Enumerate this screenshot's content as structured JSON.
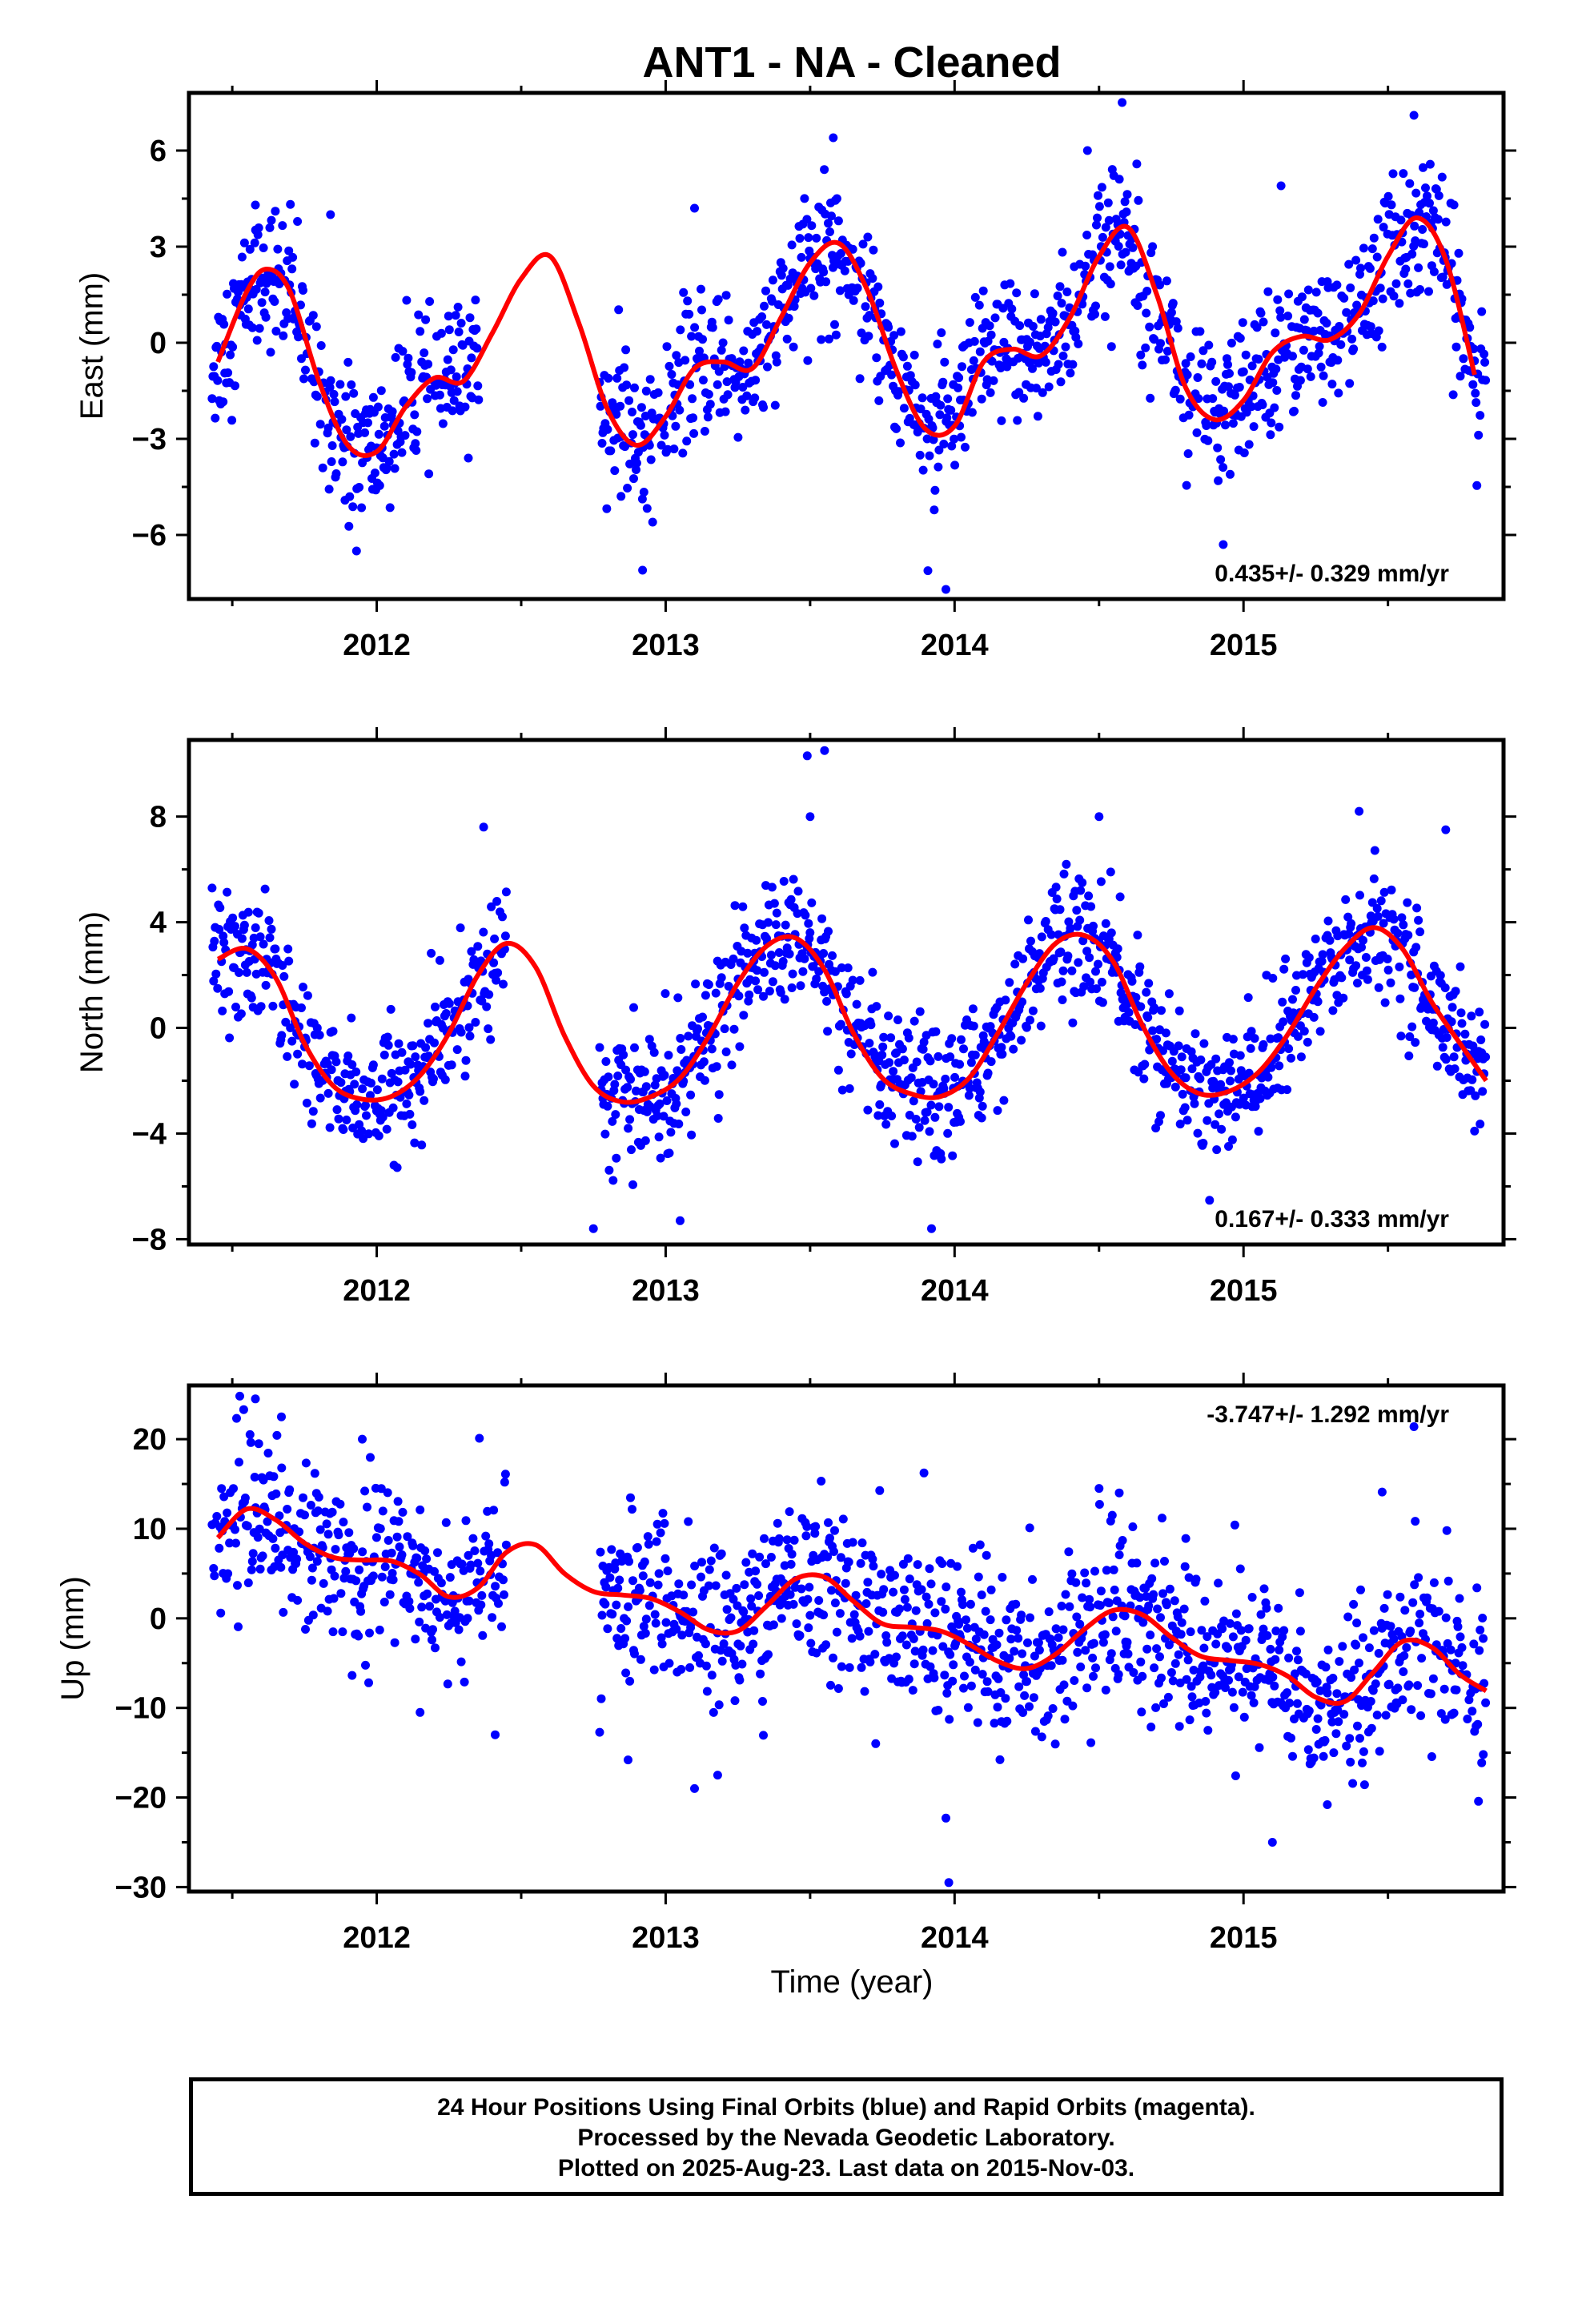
{
  "title": "ANT1  - NA - Cleaned",
  "xlabel": "Time (year)",
  "footer": [
    "24 Hour Positions Using Final Orbits (blue) and Rapid Orbits (magenta).",
    "Processed by the Nevada Geodetic Laboratory.",
    "Plotted on 2025-Aug-23. Last data on 2015-Nov-03."
  ],
  "colors": {
    "points": "#0000ff",
    "model": "#ff0000",
    "frame": "#000000"
  },
  "chart_data": [
    {
      "type": "scatter",
      "name_label": "East (mm)",
      "ylabel": "East (mm)",
      "xlim": [
        2011.35,
        2015.9
      ],
      "ylim": [
        -8,
        7.8
      ],
      "yticks": [
        -6,
        -3,
        0,
        3,
        6
      ],
      "xticks": [
        2012,
        2013,
        2014,
        2015
      ],
      "rate": "0.435+/- 0.329 mm/yr",
      "rate_position": "bottom-right",
      "model_series": {
        "name": "",
        "x": [
          2011.45,
          2011.55,
          2011.62,
          2011.7,
          2011.8,
          2011.9,
          2012.0,
          2012.1,
          2012.2,
          2012.3,
          2012.4,
          2012.5,
          2012.6,
          2012.7,
          2012.8,
          2012.9,
          2013.0,
          2013.1,
          2013.2,
          2013.3,
          2013.4,
          2013.5,
          2013.6,
          2013.7,
          2013.8,
          2013.9,
          2014.0,
          2014.1,
          2014.2,
          2014.3,
          2014.4,
          2014.5,
          2014.6,
          2014.7,
          2014.8,
          2014.9,
          2015.0,
          2015.1,
          2015.2,
          2015.3,
          2015.4,
          2015.5,
          2015.6,
          2015.7,
          2015.8
        ],
        "y": [
          -0.6,
          1.6,
          2.3,
          1.6,
          -1.2,
          -3.2,
          -3.4,
          -2.0,
          -1.1,
          -1.2,
          0.3,
          2.0,
          2.7,
          0.6,
          -2.1,
          -3.2,
          -2.3,
          -0.8,
          -0.6,
          -0.8,
          0.8,
          2.5,
          3.1,
          1.6,
          -0.9,
          -2.7,
          -2.6,
          -0.6,
          -0.2,
          -0.4,
          0.8,
          2.7,
          3.6,
          1.5,
          -1.4,
          -2.4,
          -1.8,
          -0.3,
          0.2,
          0.1,
          0.9,
          2.7,
          3.9,
          2.6,
          -1.0
        ]
      },
      "points": {
        "model": "seasonal",
        "x_start": 2011.43,
        "x_end": 2015.84,
        "gaps": [
          [
            2012.36,
            2012.77
          ]
        ],
        "spread": 1.1,
        "outliers": [
          [
            2011.58,
            4.3
          ],
          [
            2011.84,
            4.0
          ],
          [
            2011.93,
            -6.5
          ],
          [
            2012.92,
            -7.1
          ],
          [
            2013.1,
            4.2
          ],
          [
            2013.58,
            6.4
          ],
          [
            2013.97,
            -7.7
          ],
          [
            2014.46,
            6.0
          ],
          [
            2014.58,
            7.5
          ],
          [
            2014.93,
            -6.3
          ],
          [
            2015.13,
            4.9
          ],
          [
            2015.59,
            7.1
          ]
        ]
      }
    },
    {
      "type": "scatter",
      "ylabel": "North (mm)",
      "xlim": [
        2011.35,
        2015.9
      ],
      "ylim": [
        -8.2,
        10.9
      ],
      "yticks": [
        -8,
        -4,
        0,
        4,
        8
      ],
      "xticks": [
        2012,
        2013,
        2014,
        2015
      ],
      "rate": "0.167+/- 0.333 mm/yr",
      "rate_position": "bottom-right",
      "model_series": {
        "name": "",
        "x": [
          2011.45,
          2011.55,
          2011.65,
          2011.75,
          2011.85,
          2011.95,
          2012.05,
          2012.15,
          2012.25,
          2012.35,
          2012.45,
          2012.55,
          2012.65,
          2012.75,
          2012.85,
          2012.95,
          2013.05,
          2013.15,
          2013.25,
          2013.35,
          2013.45,
          2013.55,
          2013.65,
          2013.75,
          2013.85,
          2013.95,
          2014.05,
          2014.15,
          2014.25,
          2014.35,
          2014.45,
          2014.55,
          2014.65,
          2014.75,
          2014.85,
          2014.95,
          2015.05,
          2015.15,
          2015.25,
          2015.35,
          2015.45,
          2015.55,
          2015.65,
          2015.75,
          2015.84
        ],
        "y": [
          2.6,
          3.0,
          1.9,
          -0.6,
          -2.2,
          -2.7,
          -2.6,
          -1.8,
          -0.2,
          2.0,
          3.2,
          2.3,
          -0.3,
          -2.2,
          -2.8,
          -2.6,
          -1.9,
          -0.3,
          1.7,
          3.1,
          3.4,
          2.2,
          -0.2,
          -1.9,
          -2.5,
          -2.6,
          -1.9,
          -0.2,
          1.7,
          3.2,
          3.5,
          2.5,
          0.1,
          -1.7,
          -2.5,
          -2.4,
          -1.7,
          -0.3,
          1.5,
          3.0,
          3.8,
          3.0,
          1.0,
          -0.6,
          -2.0
        ]
      },
      "points": {
        "model": "seasonal",
        "x_start": 2011.43,
        "x_end": 2015.84,
        "gaps": [
          [
            2012.45,
            2012.77
          ]
        ],
        "spread": 1.2,
        "outliers": [
          [
            2012.37,
            7.6
          ],
          [
            2012.75,
            -7.6
          ],
          [
            2013.05,
            -7.3
          ],
          [
            2013.49,
            10.3
          ],
          [
            2013.5,
            8.0
          ],
          [
            2013.55,
            10.5
          ],
          [
            2013.92,
            -7.6
          ],
          [
            2014.5,
            8.0
          ],
          [
            2015.4,
            8.2
          ],
          [
            2015.7,
            7.5
          ]
        ]
      }
    },
    {
      "type": "scatter",
      "ylabel": "Up (mm)",
      "xlim": [
        2011.35,
        2015.9
      ],
      "ylim": [
        -30.5,
        26
      ],
      "yticks": [
        -30,
        -20,
        -10,
        0,
        10,
        20
      ],
      "xticks": [
        2012,
        2013,
        2014,
        2015
      ],
      "rate": "-3.747+/- 1.292 mm/yr",
      "rate_position": "top-right",
      "model_series": {
        "name": "",
        "x": [
          2011.45,
          2011.55,
          2011.65,
          2011.75,
          2011.85,
          2011.95,
          2012.05,
          2012.15,
          2012.25,
          2012.35,
          2012.45,
          2012.55,
          2012.65,
          2012.75,
          2012.85,
          2012.95,
          2013.05,
          2013.15,
          2013.25,
          2013.35,
          2013.45,
          2013.55,
          2013.65,
          2013.75,
          2013.85,
          2013.95,
          2014.05,
          2014.15,
          2014.25,
          2014.35,
          2014.45,
          2014.55,
          2014.65,
          2014.75,
          2014.85,
          2014.95,
          2015.05,
          2015.15,
          2015.25,
          2015.35,
          2015.45,
          2015.55,
          2015.65,
          2015.75,
          2015.84
        ],
        "y": [
          9.0,
          12.2,
          11.0,
          8.4,
          6.8,
          6.5,
          6.4,
          4.9,
          2.4,
          3.4,
          7.4,
          8.2,
          5.0,
          3.0,
          2.6,
          2.2,
          0.7,
          -1.3,
          -1.4,
          1.4,
          4.4,
          4.6,
          1.9,
          -0.6,
          -1.0,
          -1.4,
          -2.9,
          -4.8,
          -5.6,
          -4.0,
          -1.2,
          0.9,
          0.4,
          -2.1,
          -4.2,
          -4.7,
          -5.1,
          -6.4,
          -8.8,
          -9.3,
          -6.0,
          -2.6,
          -3.2,
          -6.3,
          -8.1
        ]
      },
      "points": {
        "model": "seasonal",
        "x_start": 2011.43,
        "x_end": 2015.84,
        "gaps": [
          [
            2012.45,
            2012.77
          ]
        ],
        "spread": 4.6,
        "outliers": [
          [
            2011.58,
            24.5
          ],
          [
            2011.67,
            22.5
          ],
          [
            2011.95,
            20.0
          ],
          [
            2012.15,
            -10.5
          ],
          [
            2012.41,
            -13.0
          ],
          [
            2012.87,
            -15.8
          ],
          [
            2013.1,
            -19.0
          ],
          [
            2013.18,
            -17.5
          ],
          [
            2013.97,
            -22.3
          ],
          [
            2013.98,
            -29.5
          ],
          [
            2014.26,
            10.1
          ],
          [
            2014.5,
            14.5
          ],
          [
            2014.57,
            14.0
          ],
          [
            2015.1,
            -25.0
          ],
          [
            2015.29,
            -20.8
          ],
          [
            2015.48,
            14.1
          ],
          [
            2015.59,
            21.4
          ],
          [
            2015.83,
            -15.2
          ]
        ]
      }
    }
  ]
}
